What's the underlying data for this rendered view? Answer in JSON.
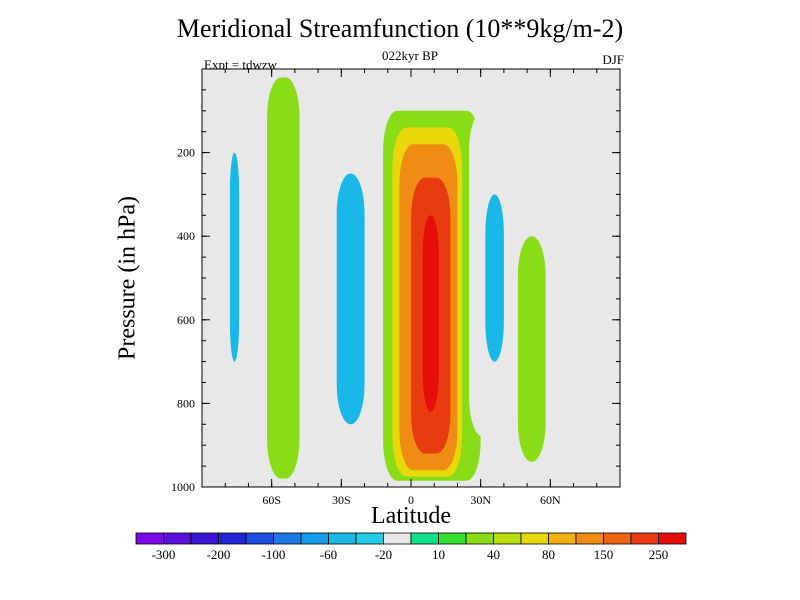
{
  "chart_data": {
    "type": "heatmap",
    "title": "Meridional Streamfunction (10**9kg/m-2)",
    "subtitle": "022kyr BP",
    "left_label": "Expt = tdwzw",
    "right_label": "DJF",
    "xlabel": "Latitude",
    "ylabel": "Pressure (in hPa)",
    "x_ticks": [
      {
        "value": -60,
        "label": "60S"
      },
      {
        "value": -30,
        "label": "30S"
      },
      {
        "value": 0,
        "label": "0"
      },
      {
        "value": 30,
        "label": "30N"
      },
      {
        "value": 60,
        "label": "60N"
      }
    ],
    "y_ticks": [
      {
        "value": 200,
        "label": "200"
      },
      {
        "value": 400,
        "label": "400"
      },
      {
        "value": 600,
        "label": "600"
      },
      {
        "value": 800,
        "label": "800"
      },
      {
        "value": 1000,
        "label": "1000"
      }
    ],
    "xlim": [
      -90,
      90
    ],
    "ylim": [
      1000,
      0
    ],
    "colorbar": {
      "colors": [
        "#7a0ae6",
        "#5c10dc",
        "#3a16d2",
        "#2228d4",
        "#1c4ee0",
        "#1a78e8",
        "#149cea",
        "#1ab8e8",
        "#24cce8",
        "#e8e8e8",
        "#10e08a",
        "#33e033",
        "#88dd16",
        "#b8dc0c",
        "#e8d80a",
        "#f0b00e",
        "#f08c14",
        "#ec6414",
        "#e83c10",
        "#e60e0a"
      ],
      "tick_labels": [
        "-300",
        "-200",
        "-100",
        "-60",
        "-20",
        "10",
        "40",
        "80",
        "150",
        "250"
      ]
    },
    "regions": [
      {
        "lat_min": -82,
        "lat_max": -72,
        "p_top": 20,
        "p_bottom": 940,
        "level": "-20"
      },
      {
        "lat_min": -78,
        "lat_max": -74,
        "p_top": 200,
        "p_bottom": 700,
        "level": "-60"
      },
      {
        "lat_min": -62,
        "lat_max": -48,
        "p_top": 20,
        "p_bottom": 980,
        "level": "10"
      },
      {
        "lat_min": -45,
        "lat_max": -15,
        "p_top": 20,
        "p_bottom": 960,
        "level": "-20"
      },
      {
        "lat_min": -32,
        "lat_max": -20,
        "p_top": 250,
        "p_bottom": 850,
        "level": "-60"
      },
      {
        "lat_min": -12,
        "lat_max": 30,
        "p_top": 100,
        "p_bottom": 985,
        "level": "10"
      },
      {
        "lat_min": -8,
        "lat_max": 22,
        "p_top": 140,
        "p_bottom": 975,
        "level": "40"
      },
      {
        "lat_min": -5,
        "lat_max": 20,
        "p_top": 180,
        "p_bottom": 960,
        "level": "80"
      },
      {
        "lat_min": 0,
        "lat_max": 17,
        "p_top": 260,
        "p_bottom": 920,
        "level": "150"
      },
      {
        "lat_min": 5,
        "lat_max": 12,
        "p_top": 350,
        "p_bottom": 820,
        "level": "250"
      },
      {
        "lat_min": 25,
        "lat_max": 45,
        "p_top": 100,
        "p_bottom": 880,
        "level": "-20"
      },
      {
        "lat_min": 32,
        "lat_max": 40,
        "p_top": 300,
        "p_bottom": 700,
        "level": "-60"
      },
      {
        "lat_min": 58,
        "lat_max": 68,
        "p_top": 20,
        "p_bottom": 920,
        "level": "-20"
      },
      {
        "lat_min": 46,
        "lat_max": 58,
        "p_top": 400,
        "p_bottom": 940,
        "level": "10"
      }
    ]
  }
}
